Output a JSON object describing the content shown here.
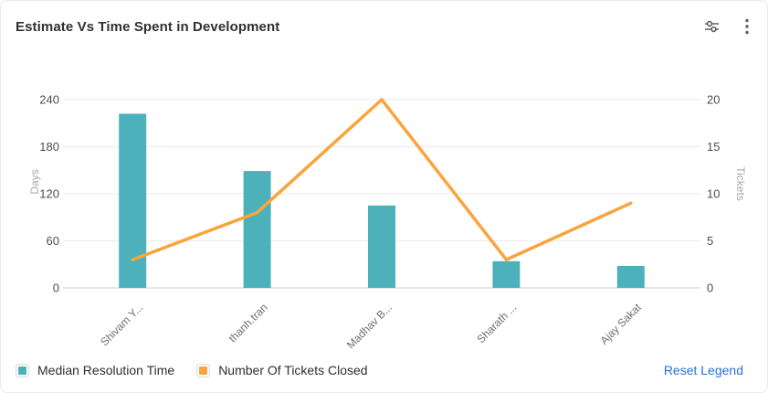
{
  "header": {
    "title": "Estimate Vs Time Spent in Development",
    "filter_icon": "sliders-icon",
    "menu_icon": "kebab-menu-icon"
  },
  "chart_data": {
    "type": "bar",
    "subtype": "combo-bar-line-dual-axis",
    "title": "Estimate Vs Time Spent in Development",
    "categories": [
      "Shivam Y...",
      "thanh.tran",
      "Madhav B...",
      "Sharath ...",
      "Ajay Sakat"
    ],
    "series": [
      {
        "name": "Median Resolution Time",
        "type": "bar",
        "axis": "left",
        "color": "#4DB1BC",
        "values": [
          222,
          149,
          105,
          34,
          28
        ]
      },
      {
        "name": "Number Of Tickets Closed",
        "type": "line",
        "axis": "right",
        "color": "#F9A43C",
        "values": [
          3,
          8,
          20,
          3,
          9
        ]
      }
    ],
    "left_axis": {
      "label": "Days",
      "ticks": [
        0,
        60,
        120,
        180,
        240
      ],
      "min": 0,
      "max": 240
    },
    "right_axis": {
      "label": "Tickets",
      "ticks": [
        0,
        5,
        10,
        15,
        20
      ],
      "min": 0,
      "max": 20
    },
    "grid": true,
    "x_label_rotation": 45,
    "legend_position": "bottom-left"
  },
  "legend": {
    "items": [
      {
        "label": "Median Resolution Time",
        "color": "#4DB1BC"
      },
      {
        "label": "Number Of Tickets Closed",
        "color": "#F9A43C"
      }
    ],
    "reset_label": "Reset Legend"
  }
}
